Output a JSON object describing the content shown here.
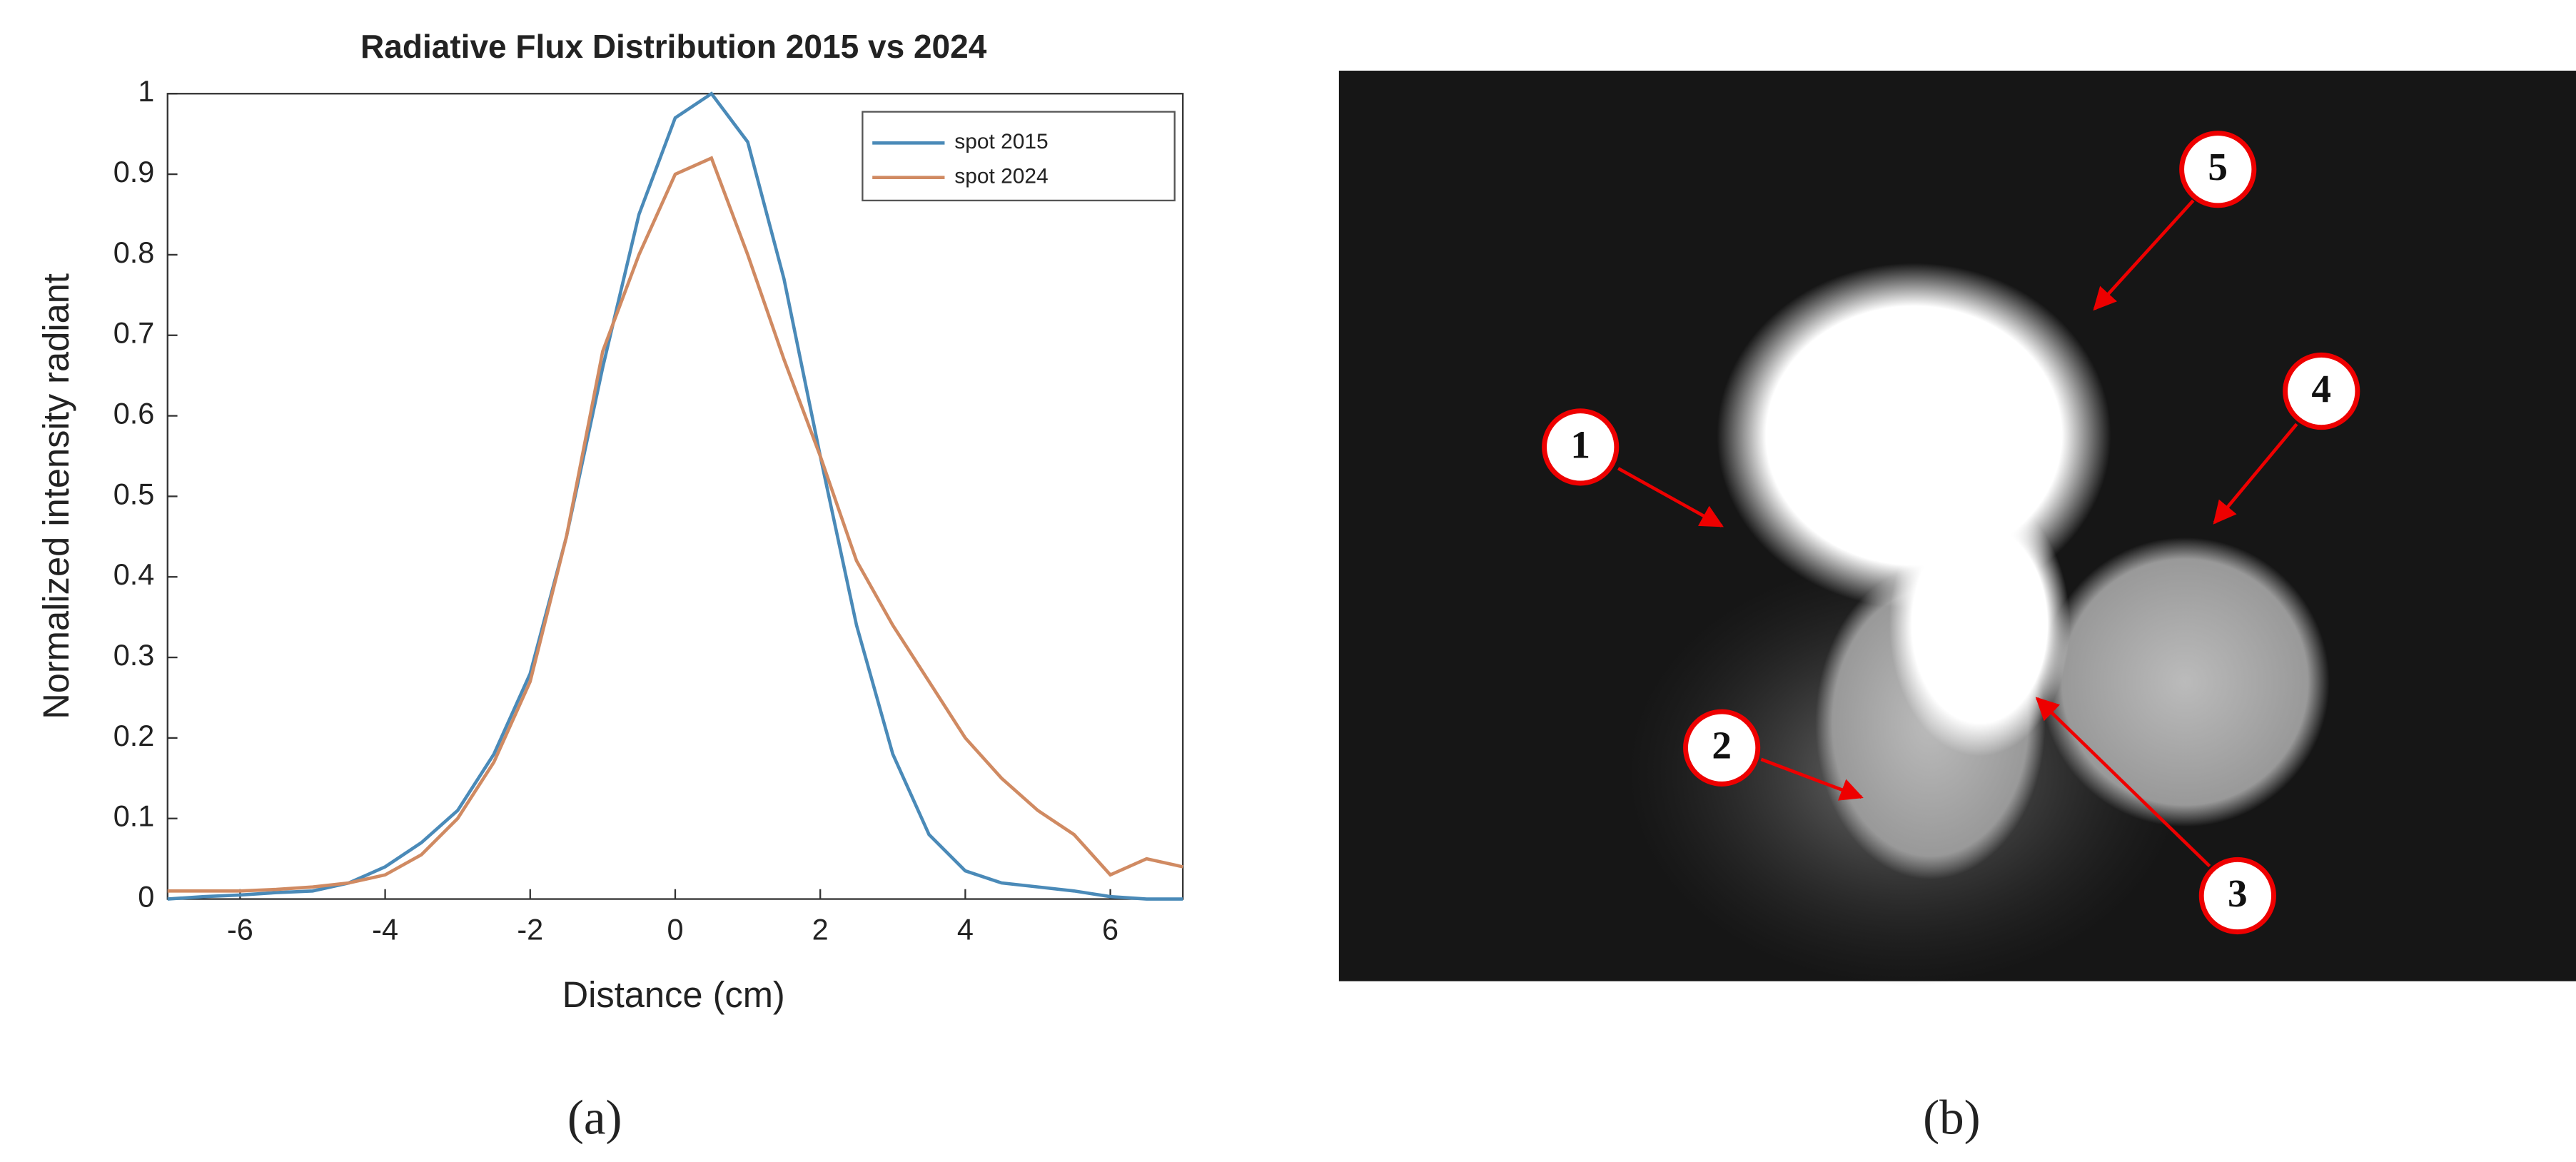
{
  "chart_data": {
    "type": "line",
    "title": "Radiative Flux Distribution 2015 vs 2024",
    "x_label": "Distance (cm)",
    "y_label": "Normalized intensity radiant",
    "x": [
      -7,
      -6.5,
      -6,
      -5.5,
      -5,
      -4.5,
      -4,
      -3.5,
      -3,
      -2.5,
      -2,
      -1.5,
      -1,
      -0.5,
      0,
      0.5,
      1,
      1.5,
      2,
      2.5,
      3,
      3.5,
      4,
      4.5,
      5,
      5.5,
      6,
      6.5,
      7
    ],
    "series": [
      {
        "name": "spot 2015",
        "color": "#4a8ab8",
        "values": [
          0,
          0.003,
          0.005,
          0.008,
          0.01,
          0.02,
          0.04,
          0.07,
          0.11,
          0.18,
          0.28,
          0.45,
          0.66,
          0.85,
          0.97,
          1.0,
          0.94,
          0.77,
          0.55,
          0.34,
          0.18,
          0.08,
          0.035,
          0.02,
          0.015,
          0.01,
          0.003,
          0,
          0
        ]
      },
      {
        "name": "spot 2024",
        "color": "#d08a62",
        "values": [
          0.01,
          0.01,
          0.01,
          0.012,
          0.015,
          0.02,
          0.03,
          0.055,
          0.1,
          0.17,
          0.27,
          0.45,
          0.68,
          0.8,
          0.9,
          0.92,
          0.8,
          0.67,
          0.55,
          0.42,
          0.34,
          0.27,
          0.2,
          0.15,
          0.11,
          0.08,
          0.03,
          0.05,
          0.04
        ]
      }
    ],
    "xlim": [
      -7,
      7
    ],
    "xticks": [
      -6,
      -4,
      -2,
      0,
      2,
      4,
      6
    ],
    "ylim": [
      0,
      1
    ],
    "yticks": [
      0,
      0.1,
      0.2,
      0.3,
      0.4,
      0.5,
      0.6,
      0.7,
      0.8,
      0.9,
      1
    ],
    "grid": false,
    "legend": "upper right"
  },
  "photo": {
    "labels": [
      "1",
      "2",
      "3",
      "4",
      "5"
    ]
  },
  "captions": [
    "(a)",
    "(b)"
  ]
}
